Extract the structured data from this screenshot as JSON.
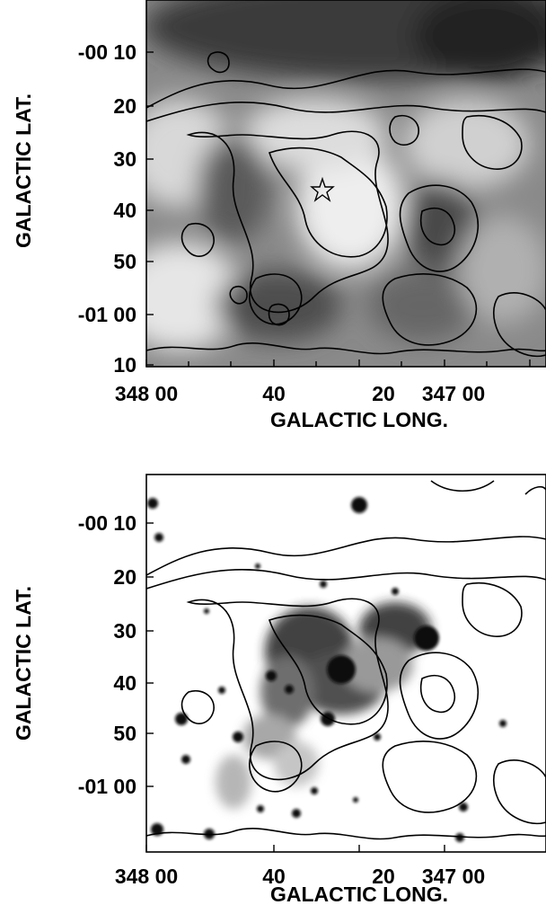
{
  "chart_data": [
    {
      "type": "heatmap",
      "panel": "top",
      "xlabel": "GALACTIC LONG.",
      "ylabel": "GALACTIC LAT.",
      "x_ticks": [
        "348 00",
        "40",
        "20",
        "347 00"
      ],
      "y_ticks": [
        "-00 10",
        "20",
        "30",
        "40",
        "50",
        "-01 00",
        "10"
      ],
      "xlim_arcmin_from_348": [
        0,
        -92
      ],
      "ylim_arcmin": [
        -4,
        -70
      ],
      "colormap": "grayscale",
      "contour_color": "#000000",
      "marker": {
        "symbol": "star",
        "x_arcmin_from_348": -29,
        "y_arcmin": -36
      }
    },
    {
      "type": "heatmap",
      "panel": "bottom",
      "xlabel": "GALACTIC LONG.",
      "ylabel": "GALACTIC LAT.",
      "x_ticks": [
        "348 00",
        "40",
        "20",
        "347 00"
      ],
      "y_ticks": [
        "-00 10",
        "20",
        "30",
        "40",
        "50",
        "-01 00"
      ],
      "xlim_arcmin_from_348": [
        0,
        -92
      ],
      "ylim_arcmin": [
        -4,
        -70
      ],
      "colormap": "grayscale-inverted",
      "contour_color": "#000000"
    }
  ]
}
